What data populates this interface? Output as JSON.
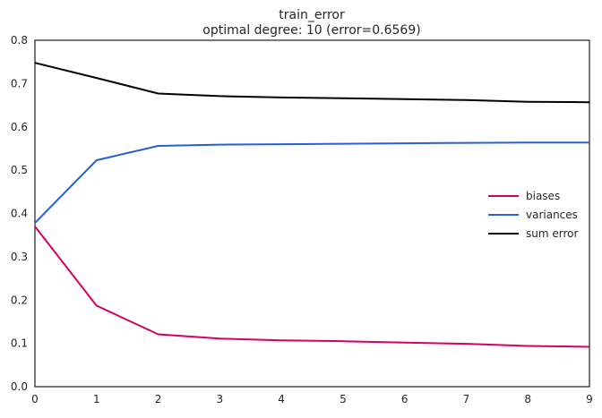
{
  "chart_data": {
    "type": "line",
    "title": "train_error",
    "subtitle": "optimal degree: 10 (error=0.6569)",
    "xlabel": "",
    "ylabel": "",
    "x": [
      0,
      1,
      2,
      3,
      4,
      5,
      6,
      7,
      8,
      9
    ],
    "xlim": [
      0,
      9
    ],
    "ylim": [
      0.0,
      0.8
    ],
    "xticks": [
      "0",
      "1",
      "2",
      "3",
      "4",
      "5",
      "6",
      "7",
      "8",
      "9"
    ],
    "yticks": [
      "0.0",
      "0.1",
      "0.2",
      "0.3",
      "0.4",
      "0.5",
      "0.6",
      "0.7",
      "0.8"
    ],
    "grid": false,
    "legend_position": "center-right",
    "series": [
      {
        "name": "biases",
        "color": "#d6005f",
        "values": [
          0.37,
          0.187,
          0.121,
          0.111,
          0.107,
          0.105,
          0.102,
          0.099,
          0.094,
          0.092
        ]
      },
      {
        "name": "variances",
        "color": "#2660d9",
        "values": [
          0.378,
          0.523,
          0.556,
          0.559,
          0.56,
          0.561,
          0.562,
          0.563,
          0.564,
          0.564
        ]
      },
      {
        "name": "sum error",
        "color": "#000000",
        "values": [
          0.748,
          0.713,
          0.677,
          0.671,
          0.668,
          0.666,
          0.664,
          0.662,
          0.658,
          0.657
        ]
      }
    ]
  }
}
